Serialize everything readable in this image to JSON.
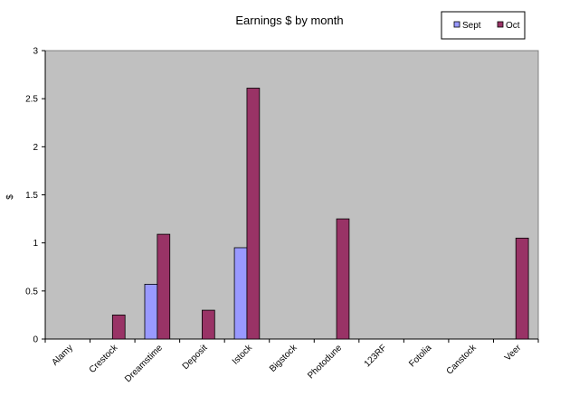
{
  "chart_data": {
    "type": "bar",
    "title": "Earnings $ by month",
    "ylabel": "$",
    "xlabel": "",
    "ylim": [
      0,
      3
    ],
    "yticks": [
      "0",
      "0.5",
      "1",
      "1.5",
      "2",
      "2.5",
      "3"
    ],
    "grid": false,
    "legend_position": "top-right",
    "plot_background": "#c0c0c0",
    "categories": [
      "Alamy",
      "Crestock",
      "Dreamstime",
      "Deposit",
      "Istock",
      "Bigstock",
      "Photodune",
      "123RF",
      "Fotolia",
      "Canstock",
      "Veer"
    ],
    "series": [
      {
        "name": "Sept",
        "color": "#9999ff",
        "values": [
          0,
          0,
          0.57,
          0,
          0.95,
          0,
          0,
          0,
          0,
          0,
          0
        ]
      },
      {
        "name": "Oct",
        "color": "#993366",
        "values": [
          0,
          0.25,
          1.09,
          0.3,
          2.61,
          0,
          1.25,
          0,
          0,
          0,
          1.05
        ]
      }
    ]
  }
}
